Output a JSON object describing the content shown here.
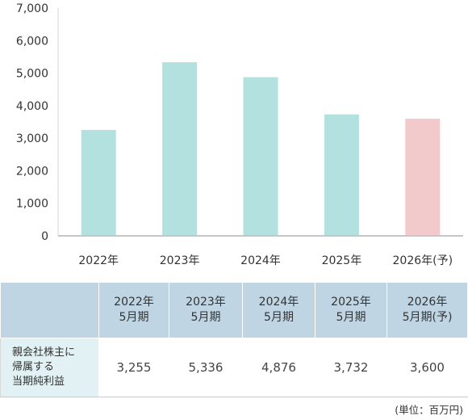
{
  "chart_data": {
    "type": "bar",
    "categories": [
      "2022年",
      "2023年",
      "2024年",
      "2025年",
      "2026年(予)"
    ],
    "values": [
      3255,
      5336,
      4876,
      3732,
      3600
    ],
    "ylim": [
      0,
      7000
    ],
    "yticks": [
      "0",
      "1,000",
      "2,000",
      "3,000",
      "4,000",
      "5,000",
      "6,000",
      "7,000"
    ],
    "grid": false,
    "bar_colors": [
      "#b3e1e0",
      "#b3e1e0",
      "#b3e1e0",
      "#b3e1e0",
      "#f3cacb"
    ]
  },
  "table": {
    "corner": "",
    "headers": [
      {
        "line1": "2022年",
        "line2": "5月期"
      },
      {
        "line1": "2023年",
        "line2": "5月期"
      },
      {
        "line1": "2024年",
        "line2": "5月期"
      },
      {
        "line1": "2025年",
        "line2": "5月期"
      },
      {
        "line1": "2026年",
        "line2": "5月期(予)"
      }
    ],
    "row_label": [
      "親会社株主に",
      "帰属する",
      "当期純利益"
    ],
    "values": [
      "3,255",
      "5,336",
      "4,876",
      "3,732",
      "3,600"
    ]
  },
  "unit_note": "(単位：百万円)",
  "colors": {
    "actual_bar": "#b3e1e0",
    "forecast_bar": "#f3cacb",
    "header_bg": "#bfd5e4",
    "row_label_bg": "#e2f1f3"
  }
}
